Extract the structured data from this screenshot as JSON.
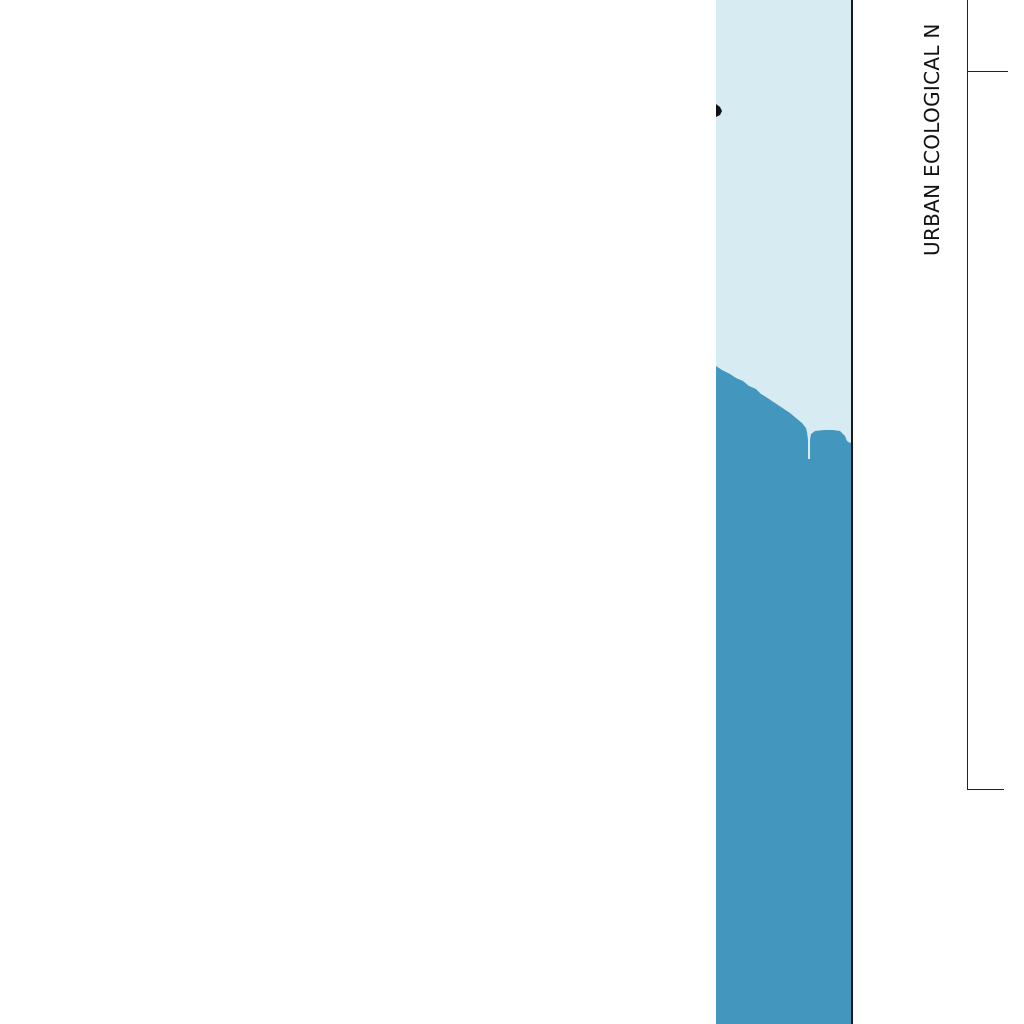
{
  "panel": {
    "title": "URBAN ECOLOGICAL N"
  },
  "legend_colors": {
    "land": "#d6ecf2",
    "water": "#4396be",
    "border": "#1a1a1a",
    "background": "#ffffff"
  }
}
